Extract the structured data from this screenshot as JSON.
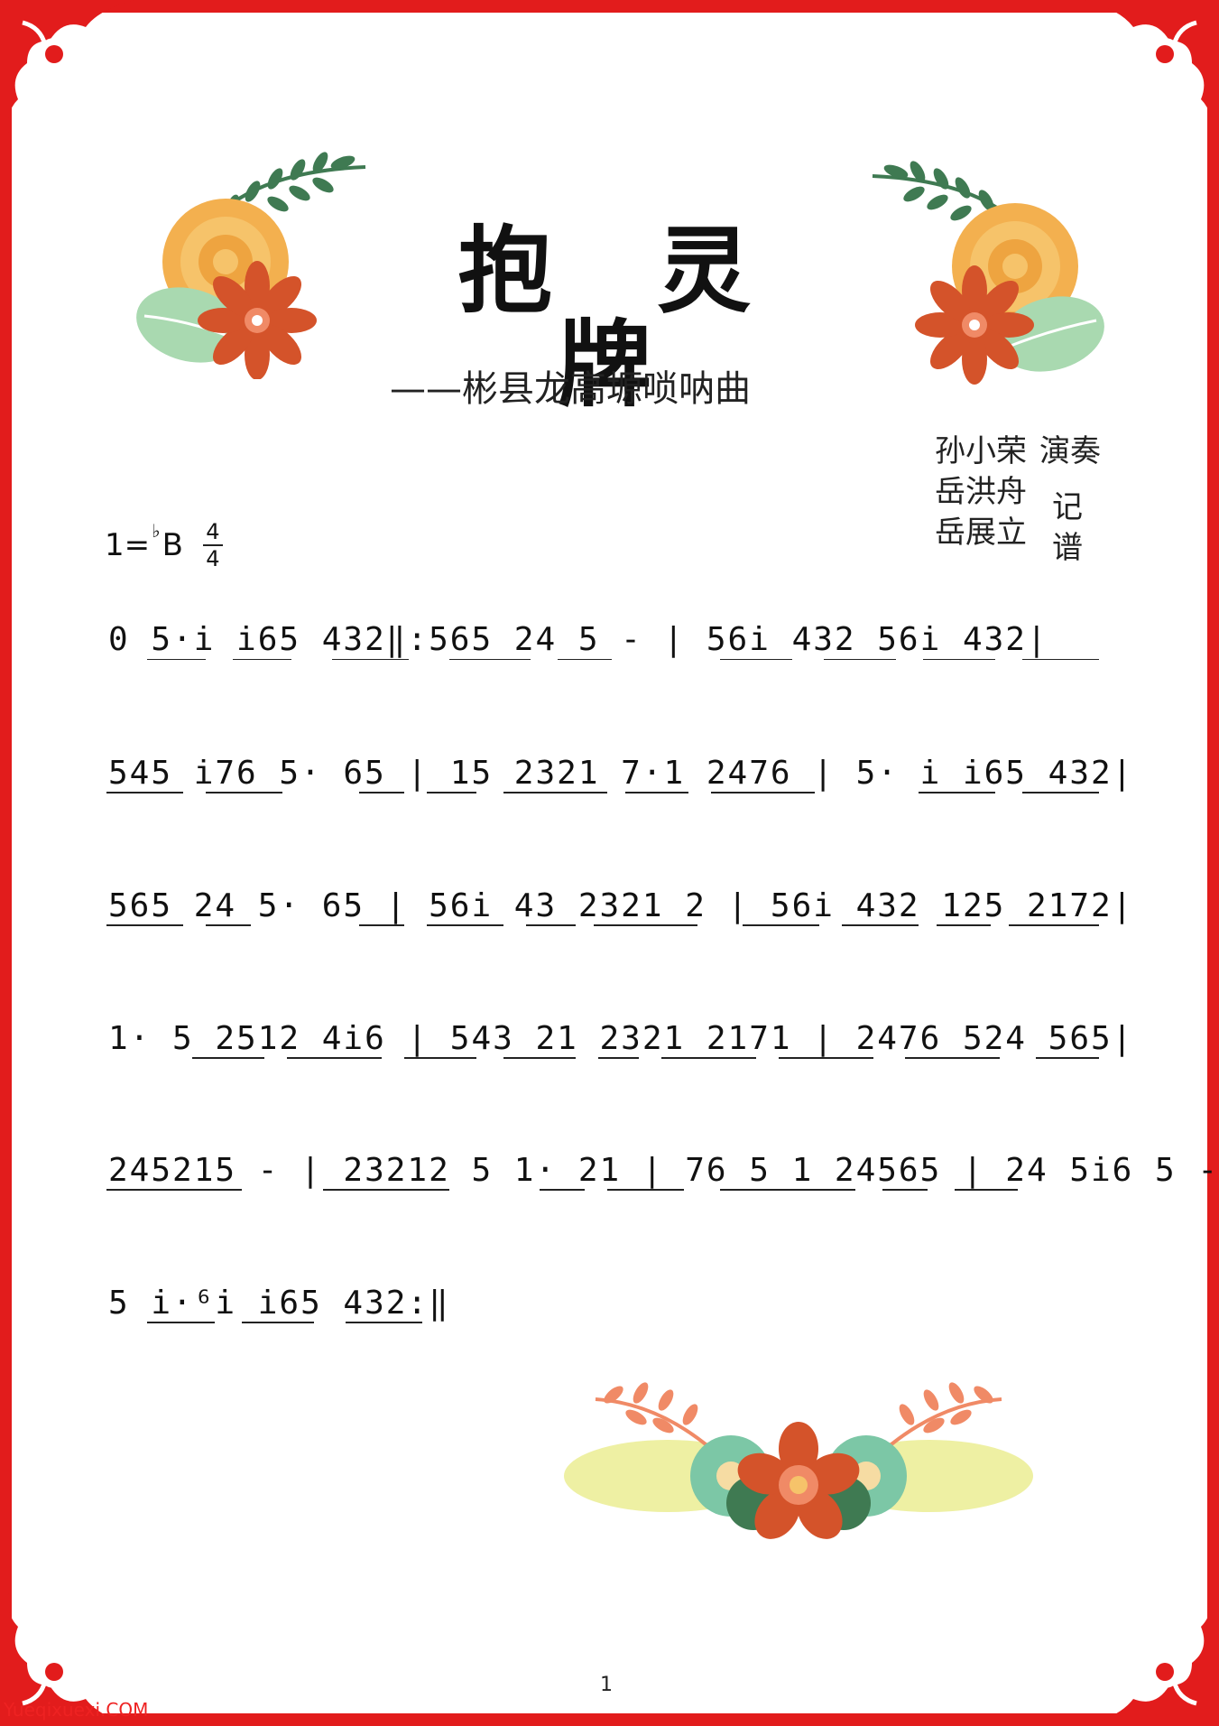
{
  "title": "抱 灵 牌",
  "subtitle": "——彬县龙高塬唢呐曲",
  "credits": {
    "performer_name": "孙小荣",
    "performer_role": "演奏",
    "transcriber_1": "岳洪舟",
    "transcriber_2": "岳展立",
    "transcriber_role": "记谱"
  },
  "key_signature": {
    "prefix": "1=",
    "flat": "♭",
    "note": "B",
    "time_top": "4",
    "time_bottom": "4"
  },
  "score_lines": [
    "0 5·i̇  i̇65  432‖:565  24  5 - | 56i̇  432  56i̇  432|",
    "545  i̇76  5· 65 | 15  2321  7·1  2476 | 5· i̇  i̇65  432|",
    "565  24  5· 65 | 56i̇  43  2321  2 | 56i̇  432  125  2172|",
    "1· 5  2512  4i̇6 | 543  21  2321  2171 | 2476  524  565|",
    "245215 - | 23212 5 1· 21 | 76 5 1  24565 | 24  5i̇6  5 -|",
    "5 i̇·⁶i̇  i̇65  432:‖"
  ],
  "page_number": "1",
  "watermark": "Yueqixuexi.COM",
  "colors": {
    "border": "#e21c1c",
    "leaf_green": "#3f7a52",
    "orange_flower": "#f3b04f",
    "red_flower": "#d4532a",
    "light_leaf": "#a9d9b0",
    "pale_yellow": "#eef0a3",
    "mint": "#7cc7a6",
    "salmon": "#f08a66"
  }
}
